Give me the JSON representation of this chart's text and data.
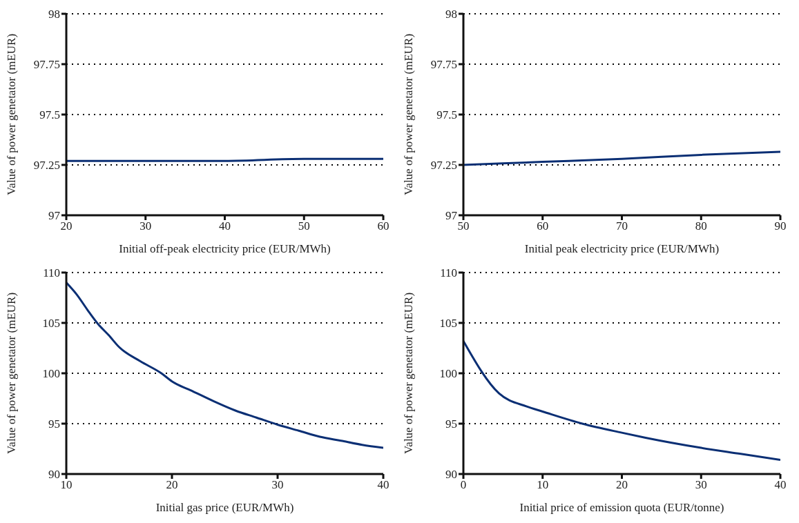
{
  "chart_data": [
    {
      "type": "line",
      "xlabel": "Initial off-peak electricity price (EUR/MWh)",
      "ylabel": "Value of power genetator (mEUR)",
      "x": [
        20,
        30,
        40,
        50,
        60
      ],
      "series": [
        {
          "color": "#0b2f74",
          "values": [
            97.27,
            97.27,
            97.27,
            97.28,
            97.28
          ]
        }
      ],
      "xlim": [
        20,
        60
      ],
      "xticks": [
        20,
        30,
        40,
        50,
        60
      ],
      "ylim": [
        97,
        98
      ],
      "yticks": [
        97,
        97.25,
        97.5,
        97.75,
        98
      ],
      "grid": "y",
      "legend": false,
      "marker": "none",
      "line_style": "solid"
    },
    {
      "type": "line",
      "xlabel": "Initial peak electricity price (EUR/MWh)",
      "ylabel": "Value of power genetator (mEUR)",
      "x": [
        50,
        60,
        70,
        80,
        90
      ],
      "series": [
        {
          "color": "#0b2f74",
          "values": [
            97.25,
            97.265,
            97.28,
            97.3,
            97.315
          ]
        }
      ],
      "xlim": [
        50,
        90
      ],
      "xticks": [
        50,
        60,
        70,
        80,
        90
      ],
      "ylim": [
        97,
        98
      ],
      "yticks": [
        97,
        97.25,
        97.5,
        97.75,
        98
      ],
      "grid": "y",
      "legend": false,
      "marker": "none",
      "line_style": "solid"
    },
    {
      "type": "line",
      "xlabel": "Initial gas price (EUR/MWh)",
      "ylabel": "Value of power genetator (mEUR)",
      "x": [
        10,
        11,
        12,
        13,
        14,
        15,
        17,
        19,
        20,
        22,
        24,
        26,
        28,
        30,
        32,
        34,
        36,
        38,
        40
      ],
      "series": [
        {
          "color": "#0b2f74",
          "values": [
            109,
            107.8,
            106.3,
            104.9,
            103.8,
            102.6,
            101.2,
            100,
            99.2,
            98.2,
            97.2,
            96.3,
            95.6,
            94.9,
            94.3,
            93.7,
            93.3,
            92.9,
            92.6
          ]
        }
      ],
      "xlim": [
        10,
        40
      ],
      "xticks": [
        10,
        20,
        30,
        40
      ],
      "ylim": [
        90,
        110
      ],
      "yticks": [
        90,
        95,
        100,
        105,
        110
      ],
      "grid": "y",
      "legend": false,
      "marker": "none",
      "line_style": "solid"
    },
    {
      "type": "line",
      "xlabel": "Initial price of emission quota (EUR/tonne)",
      "ylabel": "Value of power genetator (mEUR)",
      "x": [
        0,
        4.5,
        8,
        10,
        15,
        20,
        23,
        30,
        35,
        40
      ],
      "series": [
        {
          "color": "#0b2f74",
          "values": [
            103.2,
            98,
            96.7,
            96.2,
            95,
            94.1,
            93.6,
            92.6,
            92,
            91.4
          ]
        }
      ],
      "xlim": [
        0,
        40
      ],
      "xticks": [
        0,
        10,
        20,
        30,
        40
      ],
      "ylim": [
        90,
        110
      ],
      "yticks": [
        90,
        95,
        100,
        105,
        110
      ],
      "grid": "y",
      "legend": false,
      "marker": "none",
      "line_style": "solid"
    }
  ]
}
